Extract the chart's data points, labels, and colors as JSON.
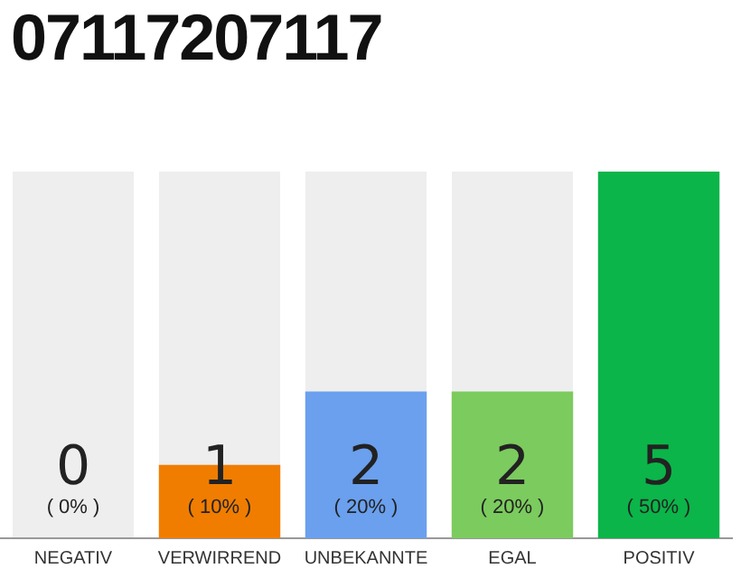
{
  "chart_data": {
    "type": "bar",
    "title": "07117207117",
    "categories": [
      "NEGATIV",
      "VERWIRREND",
      "UNBEKANNTE",
      "EGAL",
      "POSITIV"
    ],
    "values": [
      0,
      1,
      2,
      2,
      5
    ],
    "colors": [
      "#cccccc",
      "#f07d00",
      "#6aa0ee",
      "#7ccb5e",
      "#0bb549"
    ],
    "value_labels": [
      "0\n( 0% )",
      "1\n( 10% )",
      "2\n( 20% )",
      "2\n( 20% )",
      "5\n( 50% )"
    ],
    "grid": false,
    "legend": false
  }
}
